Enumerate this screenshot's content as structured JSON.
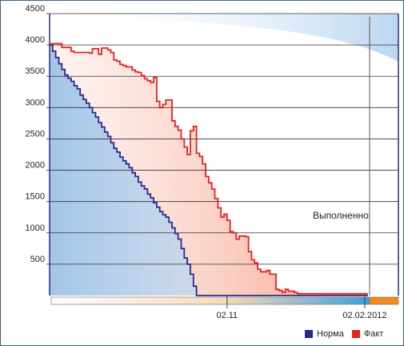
{
  "chart_data": {
    "type": "line",
    "yticks": [
      500,
      1000,
      1500,
      2000,
      2500,
      3000,
      3500,
      4000,
      4500
    ],
    "ylim": [
      0,
      4500
    ],
    "xlim_index": [
      0,
      114
    ],
    "x_tick_labels": [
      {
        "label": "02.11",
        "index": 58
      },
      {
        "label": "02.02.2012",
        "index": 103
      }
    ],
    "annotation": "Выполненно",
    "series": [
      {
        "name": "Норма",
        "color": "#2a2a8a",
        "values": [
          4000,
          3900,
          3800,
          3700,
          3610,
          3520,
          3470,
          3420,
          3350,
          3300,
          3200,
          3130,
          3070,
          3000,
          2920,
          2850,
          2760,
          2690,
          2610,
          2540,
          2440,
          2350,
          2290,
          2210,
          2150,
          2100,
          2040,
          1960,
          1900,
          1810,
          1750,
          1700,
          1620,
          1560,
          1480,
          1410,
          1340,
          1290,
          1250,
          1170,
          1080,
          990,
          900,
          750,
          600,
          500,
          340,
          150,
          0,
          0,
          0,
          0,
          0,
          0,
          0,
          0,
          0,
          0,
          0,
          0,
          0,
          0,
          0,
          0,
          0,
          0,
          0,
          0,
          0,
          0,
          0,
          0,
          0,
          0,
          0,
          0,
          0,
          0,
          0,
          0,
          0,
          0,
          0,
          0,
          0,
          0,
          0,
          0,
          0,
          0,
          0,
          0,
          0,
          0,
          0,
          0,
          0,
          0,
          0,
          0,
          0,
          0,
          0,
          0,
          0
        ]
      },
      {
        "name": "Факт",
        "color": "#e82020",
        "values": [
          4020,
          4020,
          4020,
          4020,
          3960,
          3960,
          3960,
          3900,
          3880,
          3880,
          3880,
          3880,
          3880,
          3870,
          3940,
          3940,
          3850,
          3950,
          3950,
          3920,
          3880,
          3760,
          3740,
          3690,
          3670,
          3650,
          3650,
          3600,
          3570,
          3560,
          3510,
          3460,
          3430,
          3400,
          3480,
          3100,
          3000,
          3050,
          3120,
          3120,
          2790,
          2700,
          2640,
          2500,
          2370,
          2250,
          2630,
          2700,
          2270,
          2220,
          2100,
          1900,
          1800,
          1700,
          1550,
          1400,
          1250,
          1300,
          1200,
          1020,
          1000,
          900,
          950,
          950,
          940,
          700,
          570,
          520,
          420,
          380,
          380,
          400,
          340,
          340,
          100,
          80,
          50,
          100,
          70,
          70,
          50,
          30,
          30,
          30,
          30,
          30,
          30,
          30,
          30,
          30,
          30,
          30,
          30,
          30,
          30,
          30,
          30,
          30,
          30,
          30,
          30,
          30,
          30,
          30,
          30
        ]
      }
    ],
    "legend_position": "bottom-right"
  },
  "colors": {
    "background": "#ffffff",
    "frame": "#3a5f86",
    "grid": "#333333",
    "norm_fill": "#aac9ea",
    "fact_fill": "#f7a58a",
    "timeline_fill_end": "#3f9edb",
    "timeline_tail": "#f58a1f"
  }
}
